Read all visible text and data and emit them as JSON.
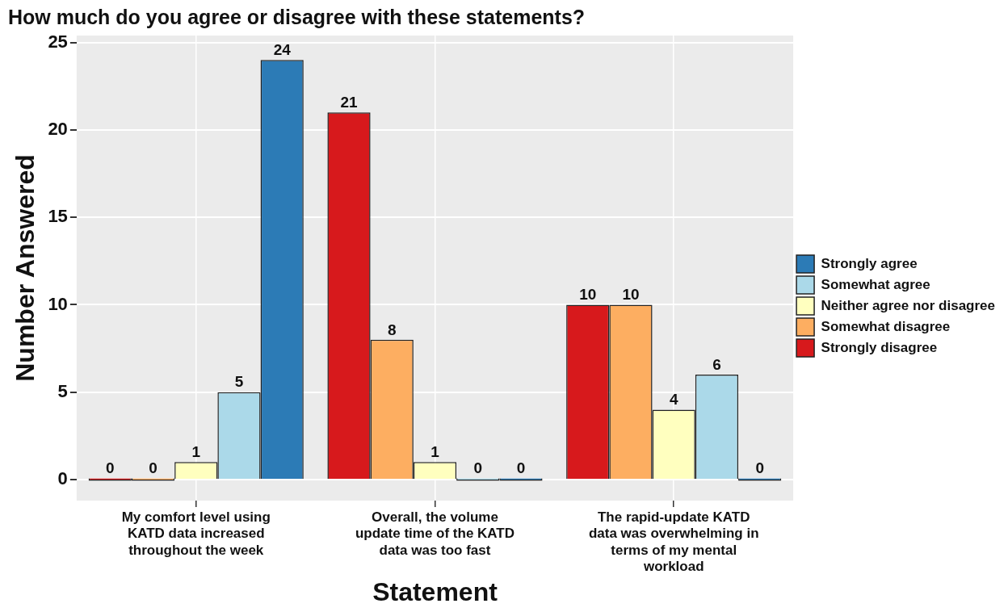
{
  "chart_data": {
    "type": "bar",
    "title": "How much do you agree or disagree with these statements?",
    "xlabel": "Statement",
    "ylabel": "Number Answered",
    "categories": [
      "My comfort level using KATD data increased throughout the week",
      "Overall, the volume update time of the KATD data was too fast",
      "The rapid-update KATD data was overwhelming in terms of my mental workload"
    ],
    "series": [
      {
        "name": "Strongly disagree",
        "color": "#d7191c",
        "values": [
          0,
          21,
          10
        ]
      },
      {
        "name": "Somewhat disagree",
        "color": "#fdae61",
        "values": [
          0,
          8,
          10
        ]
      },
      {
        "name": "Neither agree nor disagree",
        "color": "#ffffbf",
        "values": [
          1,
          1,
          4
        ]
      },
      {
        "name": "Somewhat agree",
        "color": "#abd9e9",
        "values": [
          5,
          0,
          6
        ]
      },
      {
        "name": "Strongly agree",
        "color": "#2c7bb6",
        "values": [
          24,
          0,
          0
        ]
      }
    ],
    "ylim": [
      -1.2,
      25.4
    ],
    "yticks": [
      0,
      5,
      10,
      15,
      20,
      25
    ],
    "grid": true,
    "legend": "right",
    "data_labels": true
  }
}
